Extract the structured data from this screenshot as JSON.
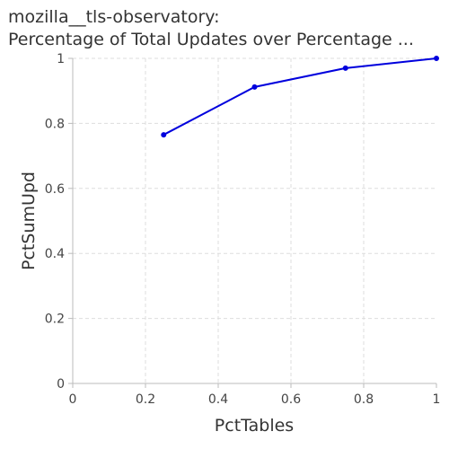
{
  "chart_data": {
    "type": "line",
    "title_lines": [
      "mozilla__tls-observatory:",
      "Percentage of Total Updates over Percentage ..."
    ],
    "xlabel": "PctTables",
    "ylabel": "PctSumUpd",
    "xlim": [
      0,
      1
    ],
    "ylim": [
      0,
      1
    ],
    "x_ticks": [
      "0",
      "0.2",
      "0.4",
      "0.6",
      "0.8",
      "1"
    ],
    "y_ticks": [
      "0",
      "0.2",
      "0.4",
      "0.6",
      "0.8",
      "1"
    ],
    "grid": true,
    "series": [
      {
        "x": [
          0.25,
          0.5,
          0.75,
          1.0
        ],
        "y": [
          0.765,
          0.912,
          0.97,
          1.0
        ],
        "color": "#0000dd"
      }
    ]
  }
}
